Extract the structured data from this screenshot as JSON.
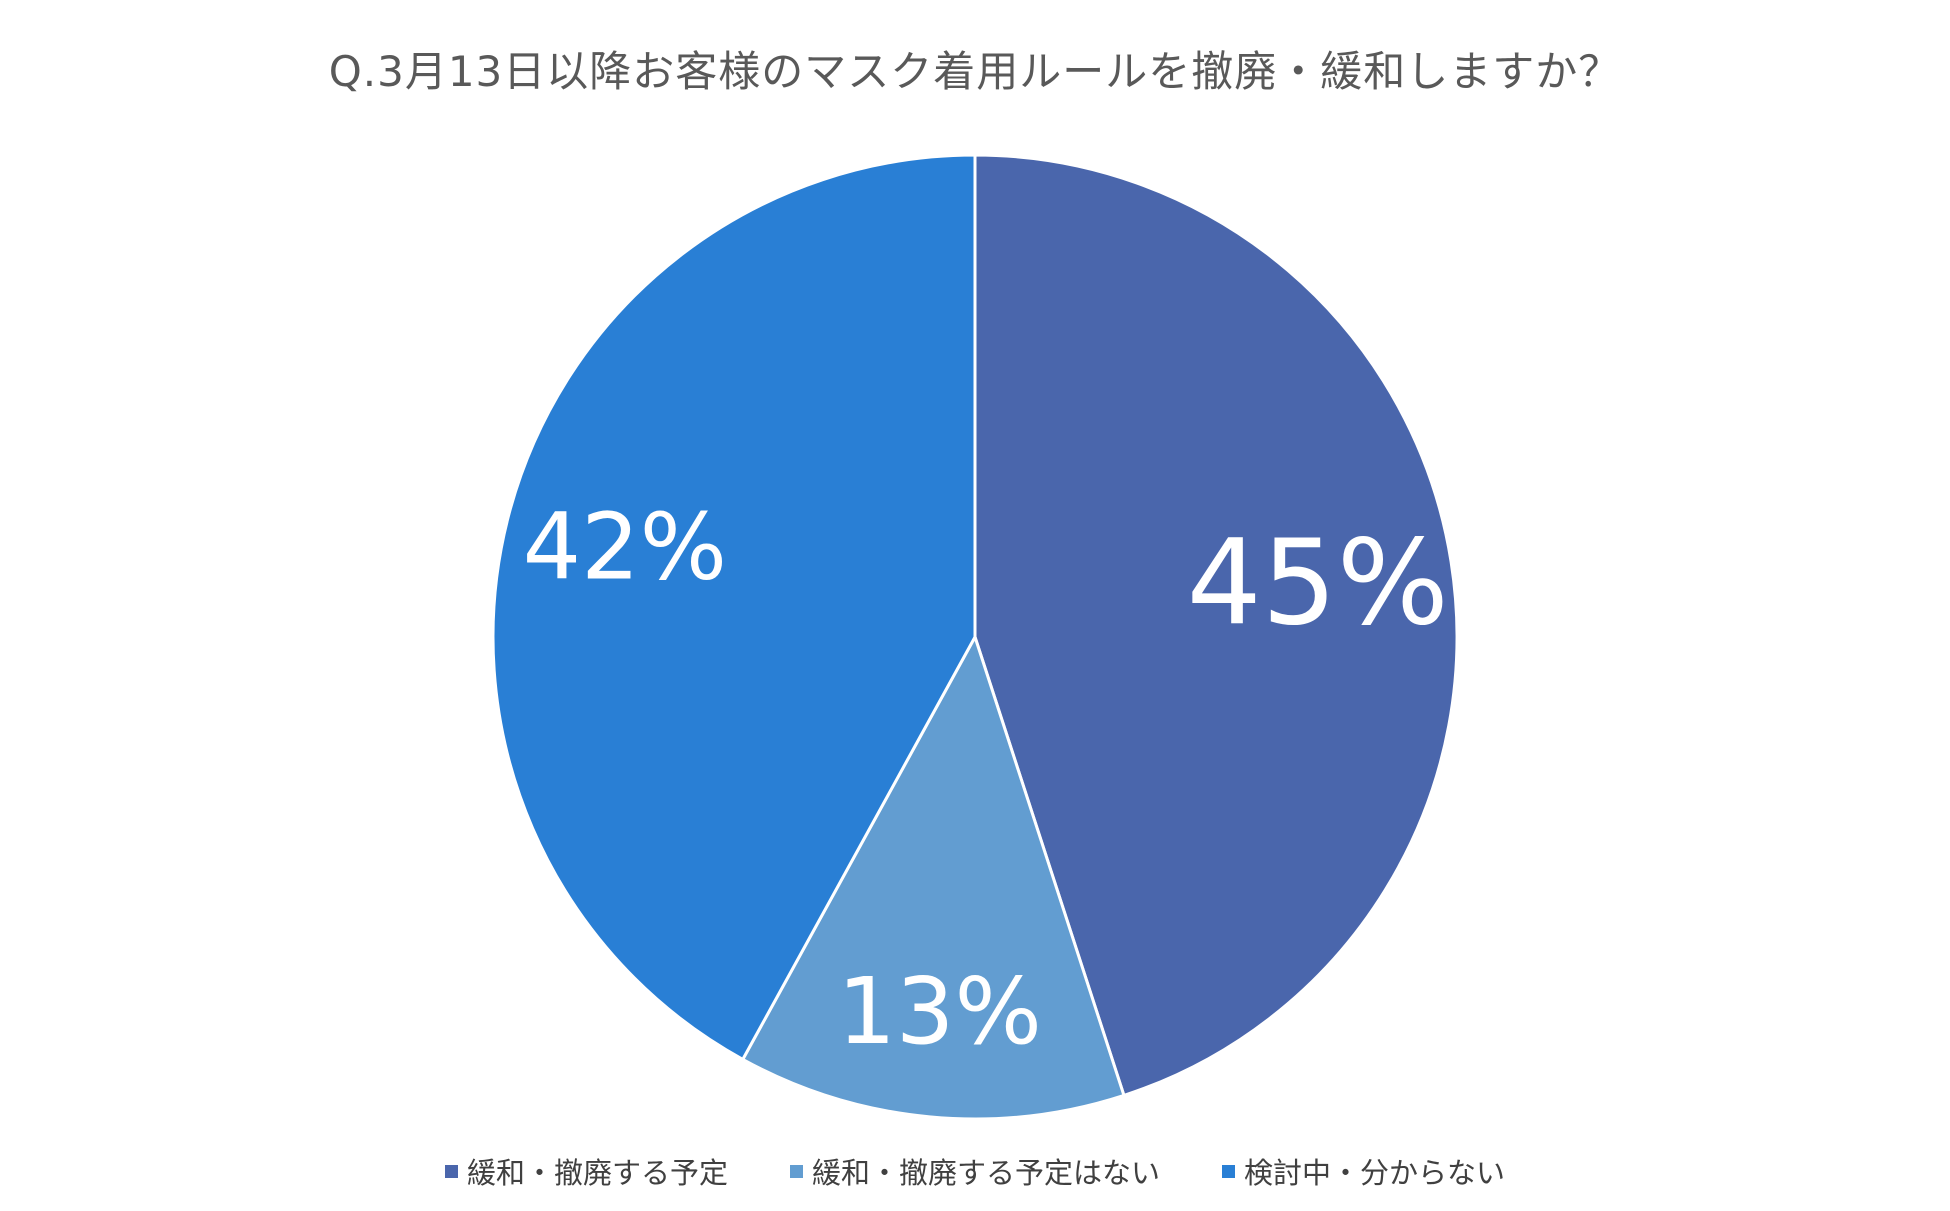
{
  "chart_data": {
    "type": "pie",
    "title": "Q.3月13日以降お客様のマスク着用ルールを撤廃・緩和しますか？",
    "slices": [
      {
        "label": "緩和・撤廃する予定",
        "value": 45,
        "display": "45%",
        "color": "#4A66AC"
      },
      {
        "label": "緩和・撤廃する予定はない",
        "value": 13,
        "display": "13%",
        "color": "#629DD1"
      },
      {
        "label": "検討中・分からない",
        "value": 42,
        "display": "42%",
        "color": "#297FD5"
      }
    ],
    "legend_position": "bottom"
  }
}
